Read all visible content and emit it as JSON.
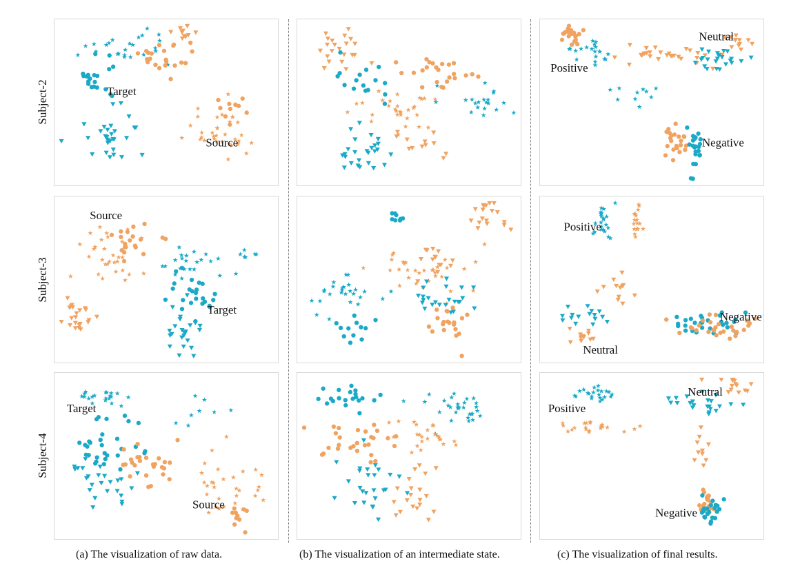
{
  "colors": {
    "teal": "#1aa9c7",
    "orange": "#f0a361"
  },
  "row_labels": [
    "Subject-2",
    "Subject-3",
    "Subject-4"
  ],
  "captions": [
    "(a) The visualization of raw data.",
    "(b) The visualization of an intermediate state.",
    "(c) The visualization of final results."
  ],
  "chart_data": [
    {
      "type": "scatter",
      "row": 0,
      "col": 0,
      "title": "",
      "annotations": [
        {
          "text": "Target",
          "x": 0.3,
          "y": 0.44
        },
        {
          "text": "Source",
          "x": 0.75,
          "y": 0.75
        }
      ],
      "clusters": [
        {
          "cx": 0.33,
          "cy": 0.18,
          "sx": 0.12,
          "sy": 0.08,
          "n": 24,
          "color": "teal",
          "marker": "star"
        },
        {
          "cx": 0.18,
          "cy": 0.38,
          "sx": 0.06,
          "sy": 0.08,
          "n": 20,
          "color": "teal",
          "marker": "circle"
        },
        {
          "cx": 0.25,
          "cy": 0.7,
          "sx": 0.09,
          "sy": 0.12,
          "n": 30,
          "color": "teal",
          "marker": "triangle"
        },
        {
          "cx": 0.48,
          "cy": 0.25,
          "sx": 0.07,
          "sy": 0.09,
          "n": 22,
          "color": "orange",
          "marker": "circle"
        },
        {
          "cx": 0.58,
          "cy": 0.08,
          "sx": 0.05,
          "sy": 0.03,
          "n": 10,
          "color": "orange",
          "marker": "triangle"
        },
        {
          "cx": 0.74,
          "cy": 0.68,
          "sx": 0.11,
          "sy": 0.1,
          "n": 34,
          "color": "orange",
          "marker": "star"
        },
        {
          "cx": 0.78,
          "cy": 0.55,
          "sx": 0.06,
          "sy": 0.05,
          "n": 10,
          "color": "orange",
          "marker": "circle"
        }
      ]
    },
    {
      "type": "scatter",
      "row": 0,
      "col": 1,
      "title": "",
      "annotations": [],
      "clusters": [
        {
          "cx": 0.18,
          "cy": 0.18,
          "sx": 0.08,
          "sy": 0.1,
          "n": 22,
          "color": "orange",
          "marker": "triangle"
        },
        {
          "cx": 0.3,
          "cy": 0.38,
          "sx": 0.08,
          "sy": 0.08,
          "n": 16,
          "color": "teal",
          "marker": "circle"
        },
        {
          "cx": 0.65,
          "cy": 0.32,
          "sx": 0.11,
          "sy": 0.08,
          "n": 24,
          "color": "orange",
          "marker": "circle"
        },
        {
          "cx": 0.45,
          "cy": 0.55,
          "sx": 0.14,
          "sy": 0.09,
          "n": 30,
          "color": "orange",
          "marker": "star"
        },
        {
          "cx": 0.82,
          "cy": 0.52,
          "sx": 0.08,
          "sy": 0.07,
          "n": 20,
          "color": "teal",
          "marker": "star"
        },
        {
          "cx": 0.3,
          "cy": 0.78,
          "sx": 0.1,
          "sy": 0.1,
          "n": 26,
          "color": "teal",
          "marker": "triangle"
        },
        {
          "cx": 0.55,
          "cy": 0.75,
          "sx": 0.09,
          "sy": 0.08,
          "n": 12,
          "color": "orange",
          "marker": "triangle"
        }
      ]
    },
    {
      "type": "scatter",
      "row": 0,
      "col": 2,
      "title": "",
      "annotations": [
        {
          "text": "Neutral",
          "x": 0.79,
          "y": 0.11
        },
        {
          "text": "Positive",
          "x": 0.13,
          "y": 0.3
        },
        {
          "text": "Negative",
          "x": 0.82,
          "y": 0.75
        }
      ],
      "clusters": [
        {
          "cx": 0.15,
          "cy": 0.1,
          "sx": 0.05,
          "sy": 0.05,
          "n": 22,
          "color": "orange",
          "marker": "circle"
        },
        {
          "cx": 0.25,
          "cy": 0.2,
          "sx": 0.08,
          "sy": 0.05,
          "n": 20,
          "color": "teal",
          "marker": "star"
        },
        {
          "cx": 0.55,
          "cy": 0.22,
          "sx": 0.16,
          "sy": 0.04,
          "n": 30,
          "color": "orange",
          "marker": "triangle"
        },
        {
          "cx": 0.78,
          "cy": 0.22,
          "sx": 0.1,
          "sy": 0.06,
          "n": 24,
          "color": "teal",
          "marker": "triangle"
        },
        {
          "cx": 0.9,
          "cy": 0.13,
          "sx": 0.05,
          "sy": 0.04,
          "n": 12,
          "color": "orange",
          "marker": "triangle"
        },
        {
          "cx": 0.42,
          "cy": 0.45,
          "sx": 0.06,
          "sy": 0.06,
          "n": 10,
          "color": "teal",
          "marker": "star"
        },
        {
          "cx": 0.61,
          "cy": 0.72,
          "sx": 0.03,
          "sy": 0.1,
          "n": 22,
          "color": "orange",
          "marker": "circle"
        },
        {
          "cx": 0.69,
          "cy": 0.8,
          "sx": 0.04,
          "sy": 0.09,
          "n": 22,
          "color": "teal",
          "marker": "circle"
        }
      ]
    },
    {
      "type": "scatter",
      "row": 1,
      "col": 0,
      "title": "",
      "annotations": [
        {
          "text": "Source",
          "x": 0.23,
          "y": 0.12
        },
        {
          "text": "Target",
          "x": 0.75,
          "y": 0.69
        }
      ],
      "clusters": [
        {
          "cx": 0.22,
          "cy": 0.35,
          "sx": 0.12,
          "sy": 0.12,
          "n": 30,
          "color": "orange",
          "marker": "star"
        },
        {
          "cx": 0.33,
          "cy": 0.25,
          "sx": 0.08,
          "sy": 0.09,
          "n": 20,
          "color": "orange",
          "marker": "circle"
        },
        {
          "cx": 0.1,
          "cy": 0.68,
          "sx": 0.05,
          "sy": 0.1,
          "n": 22,
          "color": "orange",
          "marker": "triangle"
        },
        {
          "cx": 0.62,
          "cy": 0.42,
          "sx": 0.1,
          "sy": 0.08,
          "n": 22,
          "color": "teal",
          "marker": "star"
        },
        {
          "cx": 0.62,
          "cy": 0.6,
          "sx": 0.09,
          "sy": 0.12,
          "n": 24,
          "color": "teal",
          "marker": "circle"
        },
        {
          "cx": 0.59,
          "cy": 0.82,
          "sx": 0.05,
          "sy": 0.09,
          "n": 24,
          "color": "teal",
          "marker": "triangle"
        },
        {
          "cx": 0.86,
          "cy": 0.35,
          "sx": 0.03,
          "sy": 0.03,
          "n": 6,
          "color": "teal",
          "marker": "star"
        }
      ]
    },
    {
      "type": "scatter",
      "row": 1,
      "col": 1,
      "title": "",
      "annotations": [],
      "clusters": [
        {
          "cx": 0.45,
          "cy": 0.12,
          "sx": 0.02,
          "sy": 0.03,
          "n": 8,
          "color": "teal",
          "marker": "circle"
        },
        {
          "cx": 0.88,
          "cy": 0.15,
          "sx": 0.06,
          "sy": 0.1,
          "n": 18,
          "color": "orange",
          "marker": "triangle"
        },
        {
          "cx": 0.55,
          "cy": 0.45,
          "sx": 0.16,
          "sy": 0.1,
          "n": 32,
          "color": "orange",
          "marker": "star"
        },
        {
          "cx": 0.2,
          "cy": 0.6,
          "sx": 0.1,
          "sy": 0.09,
          "n": 26,
          "color": "teal",
          "marker": "star"
        },
        {
          "cx": 0.25,
          "cy": 0.8,
          "sx": 0.06,
          "sy": 0.07,
          "n": 12,
          "color": "teal",
          "marker": "circle"
        },
        {
          "cx": 0.62,
          "cy": 0.62,
          "sx": 0.12,
          "sy": 0.08,
          "n": 24,
          "color": "teal",
          "marker": "triangle"
        },
        {
          "cx": 0.7,
          "cy": 0.75,
          "sx": 0.1,
          "sy": 0.1,
          "n": 20,
          "color": "orange",
          "marker": "circle"
        },
        {
          "cx": 0.62,
          "cy": 0.38,
          "sx": 0.08,
          "sy": 0.07,
          "n": 14,
          "color": "orange",
          "marker": "triangle"
        }
      ]
    },
    {
      "type": "scatter",
      "row": 1,
      "col": 2,
      "title": "",
      "annotations": [
        {
          "text": "Positive",
          "x": 0.19,
          "y": 0.19
        },
        {
          "text": "Negative",
          "x": 0.9,
          "y": 0.73
        },
        {
          "text": "Neutral",
          "x": 0.27,
          "y": 0.93
        }
      ],
      "clusters": [
        {
          "cx": 0.28,
          "cy": 0.15,
          "sx": 0.03,
          "sy": 0.08,
          "n": 22,
          "color": "teal",
          "marker": "star"
        },
        {
          "cx": 0.43,
          "cy": 0.17,
          "sx": 0.02,
          "sy": 0.07,
          "n": 18,
          "color": "orange",
          "marker": "star"
        },
        {
          "cx": 0.2,
          "cy": 0.72,
          "sx": 0.08,
          "sy": 0.05,
          "n": 16,
          "color": "teal",
          "marker": "triangle"
        },
        {
          "cx": 0.18,
          "cy": 0.84,
          "sx": 0.06,
          "sy": 0.04,
          "n": 12,
          "color": "orange",
          "marker": "triangle"
        },
        {
          "cx": 0.33,
          "cy": 0.58,
          "sx": 0.05,
          "sy": 0.08,
          "n": 12,
          "color": "orange",
          "marker": "triangle"
        },
        {
          "cx": 0.72,
          "cy": 0.76,
          "sx": 0.14,
          "sy": 0.05,
          "n": 28,
          "color": "teal",
          "marker": "circle"
        },
        {
          "cx": 0.78,
          "cy": 0.78,
          "sx": 0.13,
          "sy": 0.05,
          "n": 28,
          "color": "orange",
          "marker": "circle"
        }
      ]
    },
    {
      "type": "scatter",
      "row": 2,
      "col": 0,
      "title": "",
      "annotations": [
        {
          "text": "Target",
          "x": 0.12,
          "y": 0.22
        },
        {
          "text": "Source",
          "x": 0.69,
          "y": 0.8
        }
      ],
      "clusters": [
        {
          "cx": 0.22,
          "cy": 0.14,
          "sx": 0.08,
          "sy": 0.05,
          "n": 20,
          "color": "teal",
          "marker": "star"
        },
        {
          "cx": 0.25,
          "cy": 0.45,
          "sx": 0.12,
          "sy": 0.11,
          "n": 30,
          "color": "teal",
          "marker": "circle"
        },
        {
          "cx": 0.2,
          "cy": 0.65,
          "sx": 0.1,
          "sy": 0.12,
          "n": 26,
          "color": "teal",
          "marker": "triangle"
        },
        {
          "cx": 0.4,
          "cy": 0.55,
          "sx": 0.08,
          "sy": 0.07,
          "n": 26,
          "color": "orange",
          "marker": "circle"
        },
        {
          "cx": 0.62,
          "cy": 0.22,
          "sx": 0.07,
          "sy": 0.05,
          "n": 8,
          "color": "teal",
          "marker": "star"
        },
        {
          "cx": 0.78,
          "cy": 0.7,
          "sx": 0.1,
          "sy": 0.1,
          "n": 30,
          "color": "orange",
          "marker": "star"
        },
        {
          "cx": 0.82,
          "cy": 0.85,
          "sx": 0.05,
          "sy": 0.06,
          "n": 10,
          "color": "orange",
          "marker": "circle"
        }
      ]
    },
    {
      "type": "scatter",
      "row": 2,
      "col": 1,
      "title": "",
      "annotations": [],
      "clusters": [
        {
          "cx": 0.22,
          "cy": 0.15,
          "sx": 0.1,
          "sy": 0.06,
          "n": 20,
          "color": "teal",
          "marker": "circle"
        },
        {
          "cx": 0.3,
          "cy": 0.4,
          "sx": 0.14,
          "sy": 0.08,
          "n": 28,
          "color": "orange",
          "marker": "circle"
        },
        {
          "cx": 0.72,
          "cy": 0.22,
          "sx": 0.12,
          "sy": 0.08,
          "n": 30,
          "color": "teal",
          "marker": "star"
        },
        {
          "cx": 0.6,
          "cy": 0.38,
          "sx": 0.1,
          "sy": 0.08,
          "n": 24,
          "color": "orange",
          "marker": "star"
        },
        {
          "cx": 0.32,
          "cy": 0.68,
          "sx": 0.08,
          "sy": 0.12,
          "n": 26,
          "color": "teal",
          "marker": "triangle"
        },
        {
          "cx": 0.52,
          "cy": 0.72,
          "sx": 0.07,
          "sy": 0.12,
          "n": 20,
          "color": "orange",
          "marker": "triangle"
        }
      ]
    },
    {
      "type": "scatter",
      "row": 2,
      "col": 2,
      "title": "",
      "annotations": [
        {
          "text": "Neutral",
          "x": 0.74,
          "y": 0.12
        },
        {
          "text": "Positive",
          "x": 0.12,
          "y": 0.22
        },
        {
          "text": "Negative",
          "x": 0.61,
          "y": 0.85
        }
      ],
      "clusters": [
        {
          "cx": 0.25,
          "cy": 0.13,
          "sx": 0.07,
          "sy": 0.04,
          "n": 22,
          "color": "teal",
          "marker": "star"
        },
        {
          "cx": 0.24,
          "cy": 0.33,
          "sx": 0.1,
          "sy": 0.04,
          "n": 22,
          "color": "orange",
          "marker": "star"
        },
        {
          "cx": 0.7,
          "cy": 0.18,
          "sx": 0.1,
          "sy": 0.05,
          "n": 22,
          "color": "teal",
          "marker": "triangle"
        },
        {
          "cx": 0.85,
          "cy": 0.08,
          "sx": 0.06,
          "sy": 0.05,
          "n": 14,
          "color": "orange",
          "marker": "triangle"
        },
        {
          "cx": 0.73,
          "cy": 0.45,
          "sx": 0.02,
          "sy": 0.1,
          "n": 10,
          "color": "orange",
          "marker": "triangle"
        },
        {
          "cx": 0.74,
          "cy": 0.76,
          "sx": 0.03,
          "sy": 0.09,
          "n": 22,
          "color": "orange",
          "marker": "circle"
        },
        {
          "cx": 0.76,
          "cy": 0.82,
          "sx": 0.03,
          "sy": 0.08,
          "n": 22,
          "color": "teal",
          "marker": "circle"
        }
      ]
    }
  ]
}
